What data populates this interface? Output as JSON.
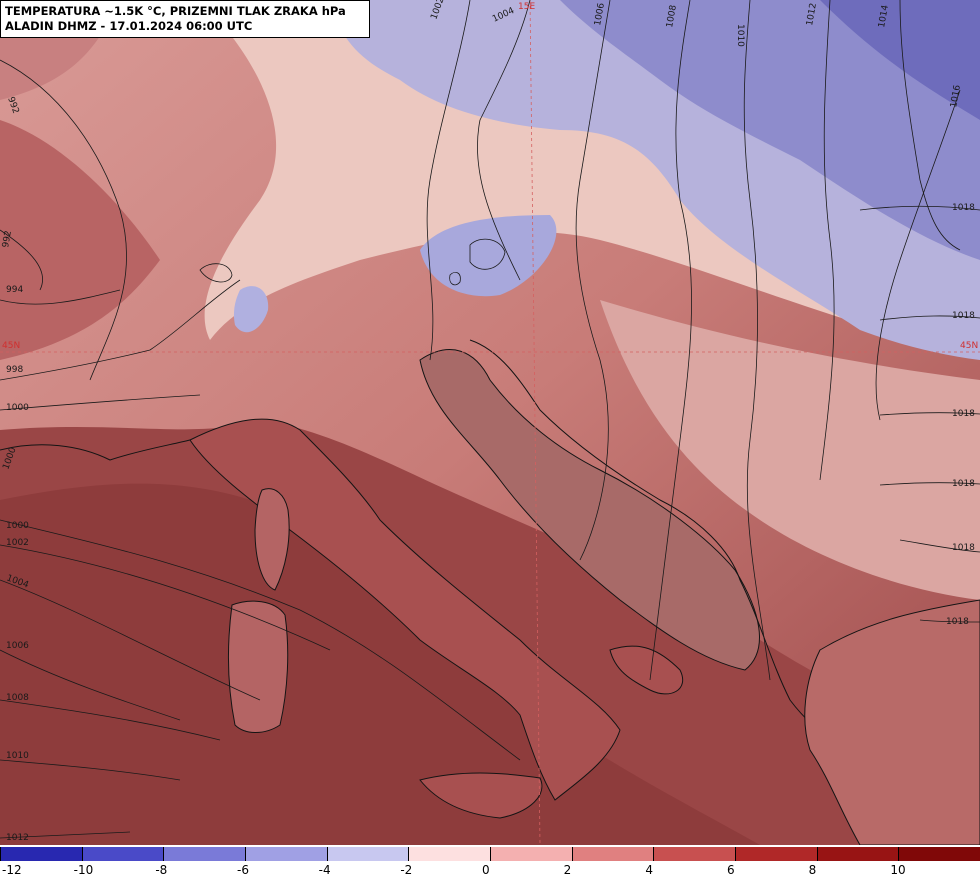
{
  "header": {
    "title_line1": "TEMPERATURA ~1.5K °C, PRIZEMNI TLAK ZRAKA hPa",
    "title_line2": "ALADIN DHMZ - 17.01.2024 06:00 UTC"
  },
  "grid_labels": {
    "meridian": "15E",
    "parallel_left": "45N",
    "parallel_right": "45N"
  },
  "isobars": [
    {
      "label": "992"
    },
    {
      "label": "992"
    },
    {
      "label": "994"
    },
    {
      "label": "998"
    },
    {
      "label": "1000"
    },
    {
      "label": "1000"
    },
    {
      "label": "1000"
    },
    {
      "label": "1002"
    },
    {
      "label": "1002"
    },
    {
      "label": "1004"
    },
    {
      "label": "1004"
    },
    {
      "label": "1006"
    },
    {
      "label": "1006"
    },
    {
      "label": "1008"
    },
    {
      "label": "1008"
    },
    {
      "label": "1010"
    },
    {
      "label": "1010"
    },
    {
      "label": "1012"
    },
    {
      "label": "1012"
    },
    {
      "label": "1014"
    },
    {
      "label": "1016"
    },
    {
      "label": "1018"
    },
    {
      "label": "1018"
    },
    {
      "label": "1018"
    },
    {
      "label": "1018"
    },
    {
      "label": "1018"
    },
    {
      "label": "1018"
    }
  ],
  "color_scale": {
    "colors": [
      "#2828b0",
      "#4a4ac8",
      "#7a7ad8",
      "#a0a0e4",
      "#c8c8f0",
      "#fde0e0",
      "#f4b0b0",
      "#e08080",
      "#c85050",
      "#b02828",
      "#981414",
      "#800808"
    ],
    "ticks": [
      "-12",
      "-10",
      "-8",
      "-6",
      "-4",
      "-2",
      "0",
      "2",
      "4",
      "6",
      "8",
      "10"
    ]
  }
}
